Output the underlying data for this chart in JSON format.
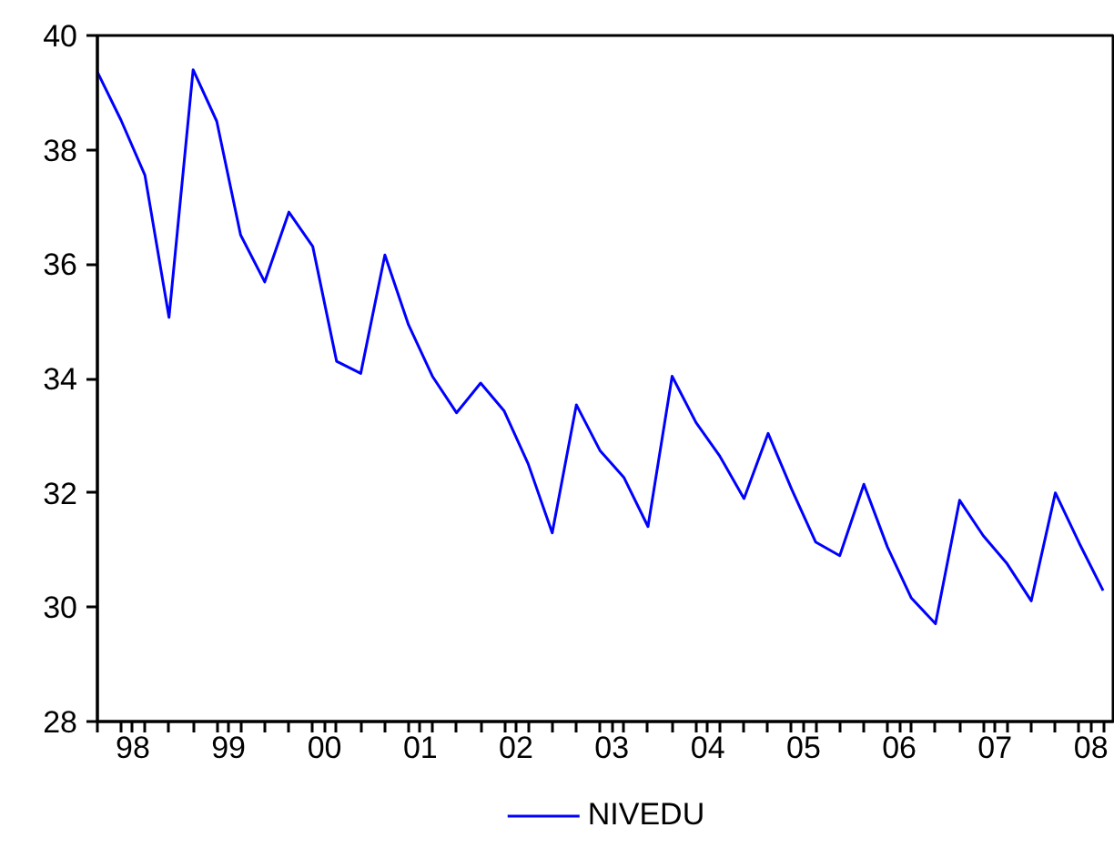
{
  "chart_data": {
    "type": "line",
    "x": [
      "1998-01",
      "1998-04",
      "1998-07",
      "1998-10",
      "1999-01",
      "1999-04",
      "1999-07",
      "1999-10",
      "2000-01",
      "2000-04",
      "2000-07",
      "2000-10",
      "2001-01",
      "2001-04",
      "2001-07",
      "2001-10",
      "2002-01",
      "2002-04",
      "2002-07",
      "2002-10",
      "2003-01",
      "2003-04",
      "2003-07",
      "2003-10",
      "2004-01",
      "2004-04",
      "2004-07",
      "2004-10",
      "2005-01",
      "2005-04",
      "2005-07",
      "2005-10",
      "2006-01",
      "2006-04",
      "2006-07",
      "2006-10",
      "2007-01",
      "2007-04",
      "2007-07",
      "2007-10",
      "2008-01",
      "2008-04",
      "2008-07"
    ],
    "series": [
      {
        "name": "NIVEDU",
        "color": "#0000ff",
        "values": [
          39.36,
          38.52,
          37.56,
          35.07,
          39.4,
          38.5,
          36.51,
          35.69,
          36.91,
          36.31,
          34.3,
          34.09,
          36.16,
          34.94,
          34.04,
          33.4,
          33.92,
          33.43,
          32.51,
          31.3,
          33.54,
          32.74,
          32.27,
          31.41,
          34.04,
          33.23,
          32.64,
          31.9,
          33.04,
          32.06,
          31.14,
          30.9,
          32.15,
          31.05,
          30.16,
          29.71,
          31.87,
          31.25,
          30.76,
          30.11,
          32.0,
          31.12,
          30.29
        ]
      }
    ],
    "xlim": [
      "1998-01",
      "2008-08-15"
    ],
    "xticks": [
      {
        "value": "1998-01",
        "label": null
      },
      {
        "value": "1998-04",
        "label": null
      },
      {
        "value": "1998-05-16",
        "label": "98"
      },
      {
        "value": "1998-07",
        "label": null
      },
      {
        "value": "1998-10",
        "label": null
      },
      {
        "value": "1999-01",
        "label": null
      },
      {
        "value": "1999-04",
        "label": null
      },
      {
        "value": "1999-05-16",
        "label": "99"
      },
      {
        "value": "1999-07",
        "label": null
      },
      {
        "value": "1999-10",
        "label": null
      },
      {
        "value": "2000-01",
        "label": null
      },
      {
        "value": "2000-04",
        "label": null
      },
      {
        "value": "2000-05-16",
        "label": "00"
      },
      {
        "value": "2000-07",
        "label": null
      },
      {
        "value": "2000-10",
        "label": null
      },
      {
        "value": "2001-01",
        "label": null
      },
      {
        "value": "2001-04",
        "label": null
      },
      {
        "value": "2001-05-16",
        "label": "01"
      },
      {
        "value": "2001-07",
        "label": null
      },
      {
        "value": "2001-10",
        "label": null
      },
      {
        "value": "2002-01",
        "label": null
      },
      {
        "value": "2002-04",
        "label": null
      },
      {
        "value": "2002-05-16",
        "label": "02"
      },
      {
        "value": "2002-07",
        "label": null
      },
      {
        "value": "2002-10",
        "label": null
      },
      {
        "value": "2003-01",
        "label": null
      },
      {
        "value": "2003-04",
        "label": null
      },
      {
        "value": "2003-05-16",
        "label": "03"
      },
      {
        "value": "2003-07",
        "label": null
      },
      {
        "value": "2003-10",
        "label": null
      },
      {
        "value": "2004-01",
        "label": null
      },
      {
        "value": "2004-04",
        "label": null
      },
      {
        "value": "2004-05-16",
        "label": "04"
      },
      {
        "value": "2004-07",
        "label": null
      },
      {
        "value": "2004-10",
        "label": null
      },
      {
        "value": "2005-01",
        "label": null
      },
      {
        "value": "2005-04",
        "label": null
      },
      {
        "value": "2005-05-16",
        "label": "05"
      },
      {
        "value": "2005-07",
        "label": null
      },
      {
        "value": "2005-10",
        "label": null
      },
      {
        "value": "2006-01",
        "label": null
      },
      {
        "value": "2006-04",
        "label": null
      },
      {
        "value": "2006-05-16",
        "label": "06"
      },
      {
        "value": "2006-07",
        "label": null
      },
      {
        "value": "2006-10",
        "label": null
      },
      {
        "value": "2007-01",
        "label": null
      },
      {
        "value": "2007-04",
        "label": null
      },
      {
        "value": "2007-05-16",
        "label": "07"
      },
      {
        "value": "2007-07",
        "label": null
      },
      {
        "value": "2007-10",
        "label": null
      },
      {
        "value": "2008-01",
        "label": null
      },
      {
        "value": "2008-04",
        "label": null
      },
      {
        "value": "2008-05-16",
        "label": "08"
      },
      {
        "value": "2008-07",
        "label": null
      }
    ],
    "ylim": [
      28,
      40
    ],
    "yticks": [
      28,
      30,
      32,
      34,
      36,
      38,
      40
    ],
    "grid": false,
    "legend": "bottom",
    "line_style": "solid"
  }
}
